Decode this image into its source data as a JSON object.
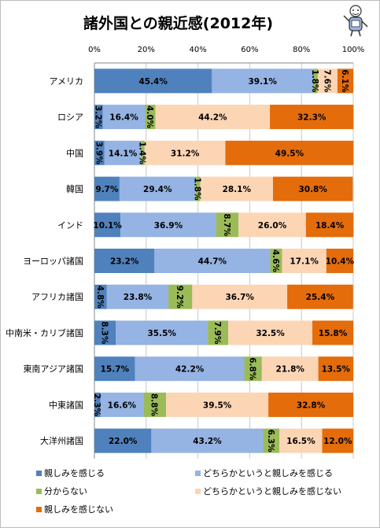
{
  "chart_data": {
    "type": "bar",
    "orientation": "horizontal",
    "stacked": true,
    "title": "諸外国との親近感(2012年)",
    "x_ticks": [
      "0%",
      "20%",
      "40%",
      "60%",
      "80%",
      "100%"
    ],
    "xlim": [
      0,
      100
    ],
    "categories": [
      "アメリカ",
      "ロシア",
      "中国",
      "韓国",
      "インド",
      "ヨーロッパ諸国",
      "アフリカ諸国",
      "中南米・カリブ諸国",
      "東南アジア諸国",
      "中東諸国",
      "大洋州諸国"
    ],
    "series": [
      {
        "name": "親しみを感じる",
        "color": "#4f81bd",
        "values": [
          45.4,
          3.2,
          3.9,
          9.7,
          10.1,
          23.2,
          4.8,
          8.3,
          15.7,
          2.3,
          22.0
        ],
        "labels": [
          "45.4%",
          "3.2%",
          "3.9%",
          "9.7%",
          "10.1%",
          "23.2%",
          "4.8%",
          "8.3%",
          "15.7%",
          "2.3%",
          "22.0%"
        ]
      },
      {
        "name": "どちらかというと親しみを感じる",
        "color": "#95b3e3",
        "values": [
          39.1,
          16.4,
          14.1,
          29.4,
          36.9,
          44.7,
          23.8,
          35.5,
          42.2,
          16.6,
          43.2
        ],
        "labels": [
          "39.1%",
          "16.4%",
          "14.1%",
          "29.4%",
          "36.9%",
          "44.7%",
          "23.8%",
          "35.5%",
          "42.2%",
          "16.6%",
          "43.2%"
        ]
      },
      {
        "name": "分からない",
        "color": "#9bbb59",
        "values": [
          1.8,
          4.0,
          1.4,
          1.8,
          8.7,
          4.6,
          9.2,
          7.9,
          6.8,
          8.8,
          6.3
        ],
        "labels": [
          "1.8%",
          "4.0%",
          "1.4%",
          "1.8%",
          "8.7%",
          "4.6%",
          "9.2%",
          "7.9%",
          "6.8%",
          "8.8%",
          "6.3%"
        ]
      },
      {
        "name": "どちらかというと親しみを感じない",
        "color": "#fcd5b5",
        "values": [
          7.6,
          44.2,
          31.2,
          28.1,
          26.0,
          17.1,
          36.7,
          32.5,
          21.8,
          39.5,
          16.5
        ],
        "labels": [
          "7.6%",
          "44.2%",
          "31.2%",
          "28.1%",
          "26.0%",
          "17.1%",
          "36.7%",
          "32.5%",
          "21.8%",
          "39.5%",
          "16.5%"
        ]
      },
      {
        "name": "親しみを感じない",
        "color": "#e46c0a",
        "values": [
          6.1,
          32.3,
          49.5,
          30.8,
          18.4,
          10.4,
          25.4,
          15.8,
          13.5,
          32.8,
          12.0
        ],
        "labels": [
          "6.1%",
          "32.3%",
          "49.5%",
          "30.8%",
          "18.4%",
          "10.4%",
          "25.4%",
          "15.8%",
          "13.5%",
          "32.8%",
          "12.0%"
        ]
      }
    ],
    "grid": true,
    "legend": "bottom"
  }
}
